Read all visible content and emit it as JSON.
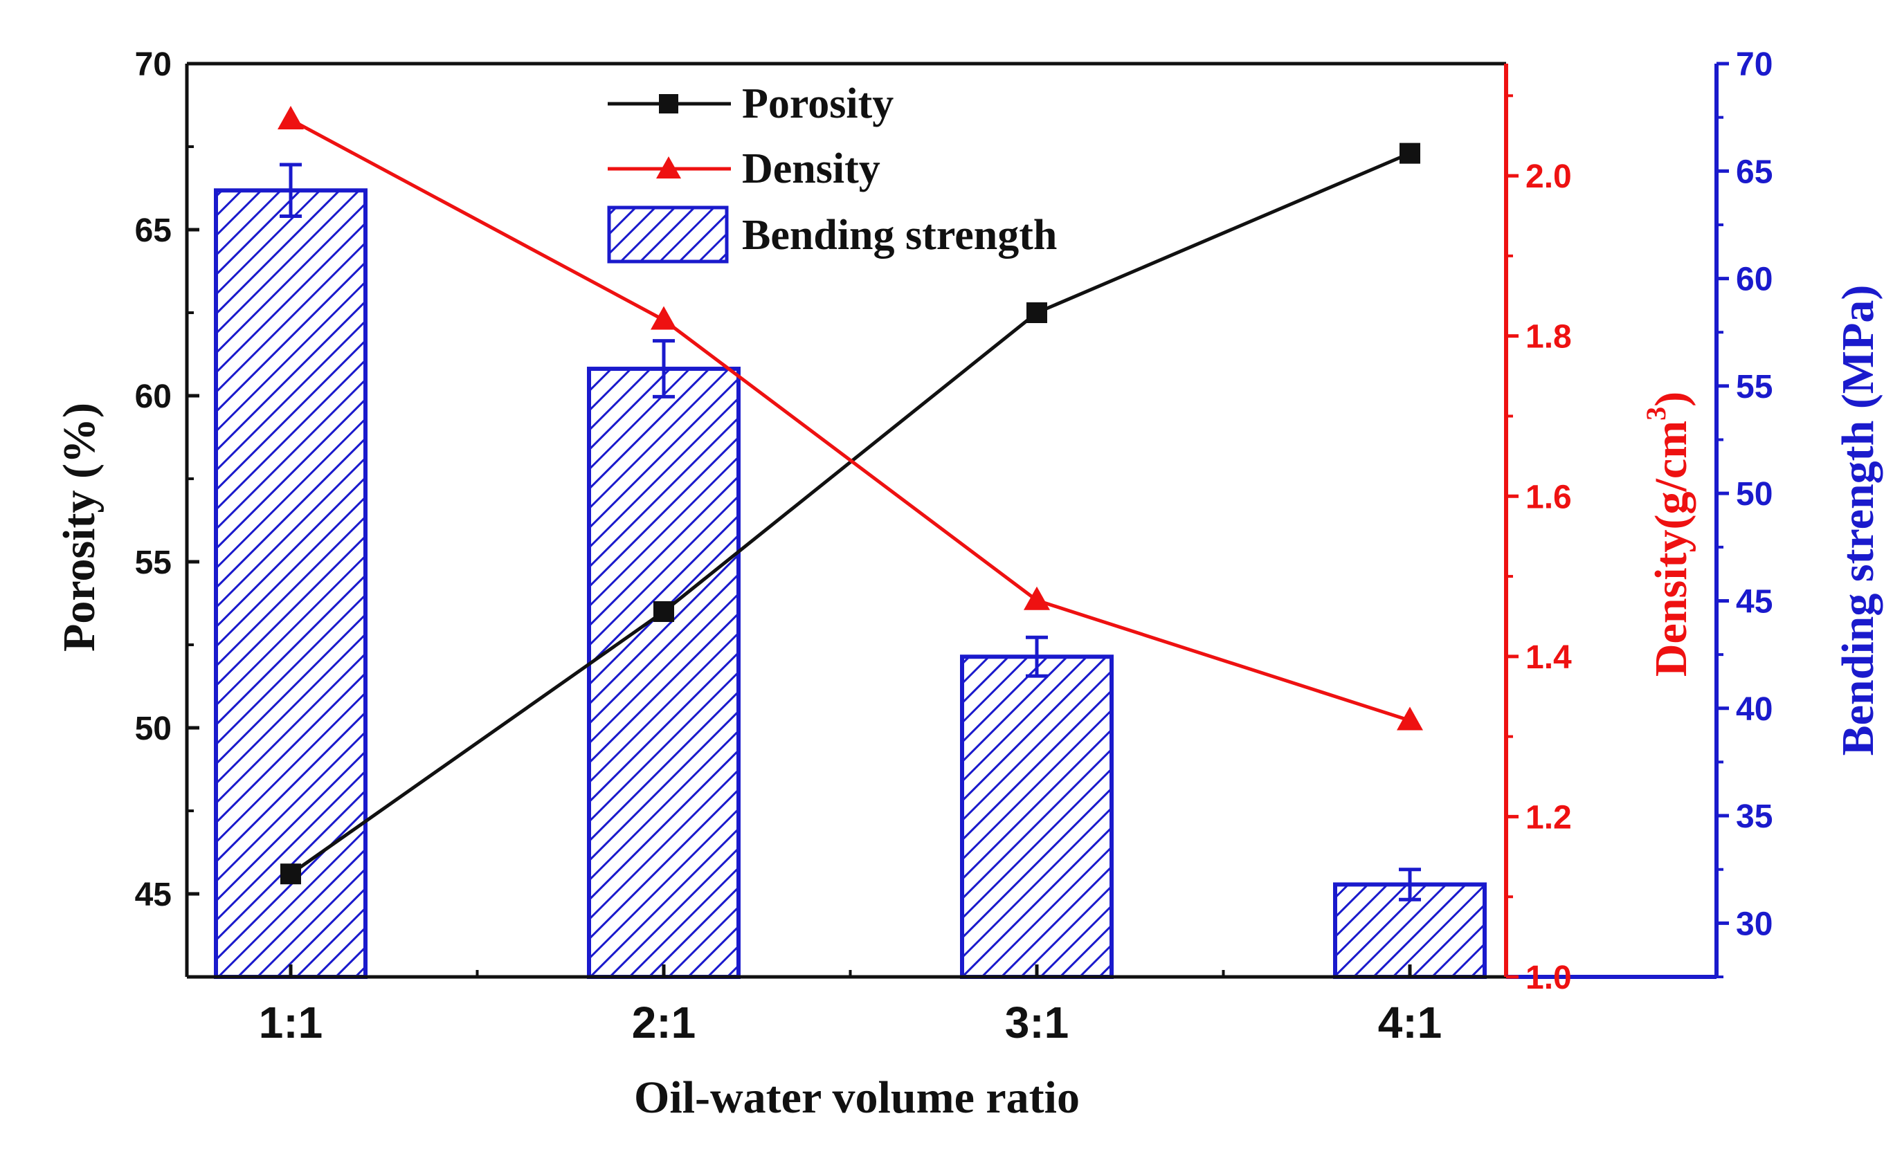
{
  "chart_data": {
    "type": "bar",
    "xlabel": "Oil-water volume ratio",
    "categories": [
      "1:1",
      "2:1",
      "3:1",
      "4:1"
    ],
    "axes": {
      "left": {
        "label": "Porosity (%)",
        "ylim": [
          42.5,
          70
        ],
        "ticks": [
          45,
          50,
          55,
          60,
          65,
          70
        ],
        "color": "#111111"
      },
      "right1": {
        "label": "Density(g/cm",
        "label_superscript": "3",
        "label_suffix": ")",
        "ylim": [
          1.0,
          2.14
        ],
        "ticks": [
          "1.0",
          "1.2",
          "1.4",
          "1.6",
          "1.8",
          "2.0"
        ],
        "color": "#ee1111"
      },
      "right2": {
        "label": "Bending strength (MPa)",
        "ylim": [
          27.5,
          70
        ],
        "ticks": [
          30,
          35,
          40,
          45,
          50,
          55,
          60,
          65,
          70
        ],
        "color": "#1a1acc"
      }
    },
    "series": [
      {
        "name": "Porosity",
        "kind": "line",
        "axis": "left",
        "marker": "square",
        "color": "#111111",
        "values": [
          45.6,
          53.5,
          62.5,
          67.3
        ]
      },
      {
        "name": "Density",
        "kind": "line",
        "axis": "right1",
        "marker": "triangle",
        "color": "#ee1111",
        "values": [
          2.07,
          1.82,
          1.47,
          1.32
        ]
      },
      {
        "name": "Bending strength",
        "kind": "bar",
        "axis": "right2",
        "pattern": "hatched",
        "color": "#1a1acc",
        "values": [
          64.1,
          55.8,
          42.4,
          31.8
        ],
        "errors": [
          1.2,
          1.3,
          0.9,
          0.7
        ]
      }
    ],
    "legend": {
      "position": "top-center",
      "entries": [
        "Porosity",
        "Density",
        "Bending strength"
      ]
    }
  }
}
